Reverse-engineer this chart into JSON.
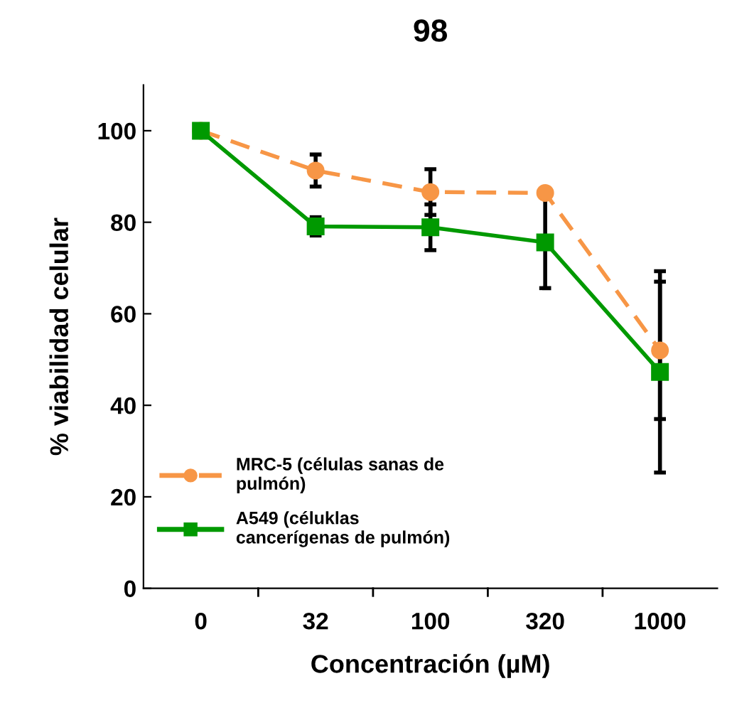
{
  "chart_data": {
    "type": "line",
    "title": "98",
    "xlabel": "Concentración (µM)",
    "ylabel": "% viabilidad celular",
    "categories": [
      "0",
      "32",
      "100",
      "320",
      "1000"
    ],
    "series": [
      {
        "name": "MRC-5 (células sanas de pulmón)",
        "color": "#f79646",
        "values": [
          100,
          91.3,
          86.6,
          86.4,
          52.0
        ],
        "errors": [
          null,
          3.5,
          5,
          null,
          15
        ],
        "marker": "circle",
        "line_style": "dashed"
      },
      {
        "name": "A549 (céluklas cancerígenas de pulmón)",
        "color": "#009900",
        "values": [
          100,
          79.1,
          78.9,
          75.6,
          47.3
        ],
        "errors": [
          null,
          2,
          5,
          10,
          22
        ],
        "marker": "square",
        "line_style": "solid"
      }
    ],
    "ylim": [
      0,
      110
    ],
    "yticks": [
      0,
      20,
      40,
      60,
      80,
      100
    ],
    "grid": false,
    "legend": "bottom left"
  }
}
